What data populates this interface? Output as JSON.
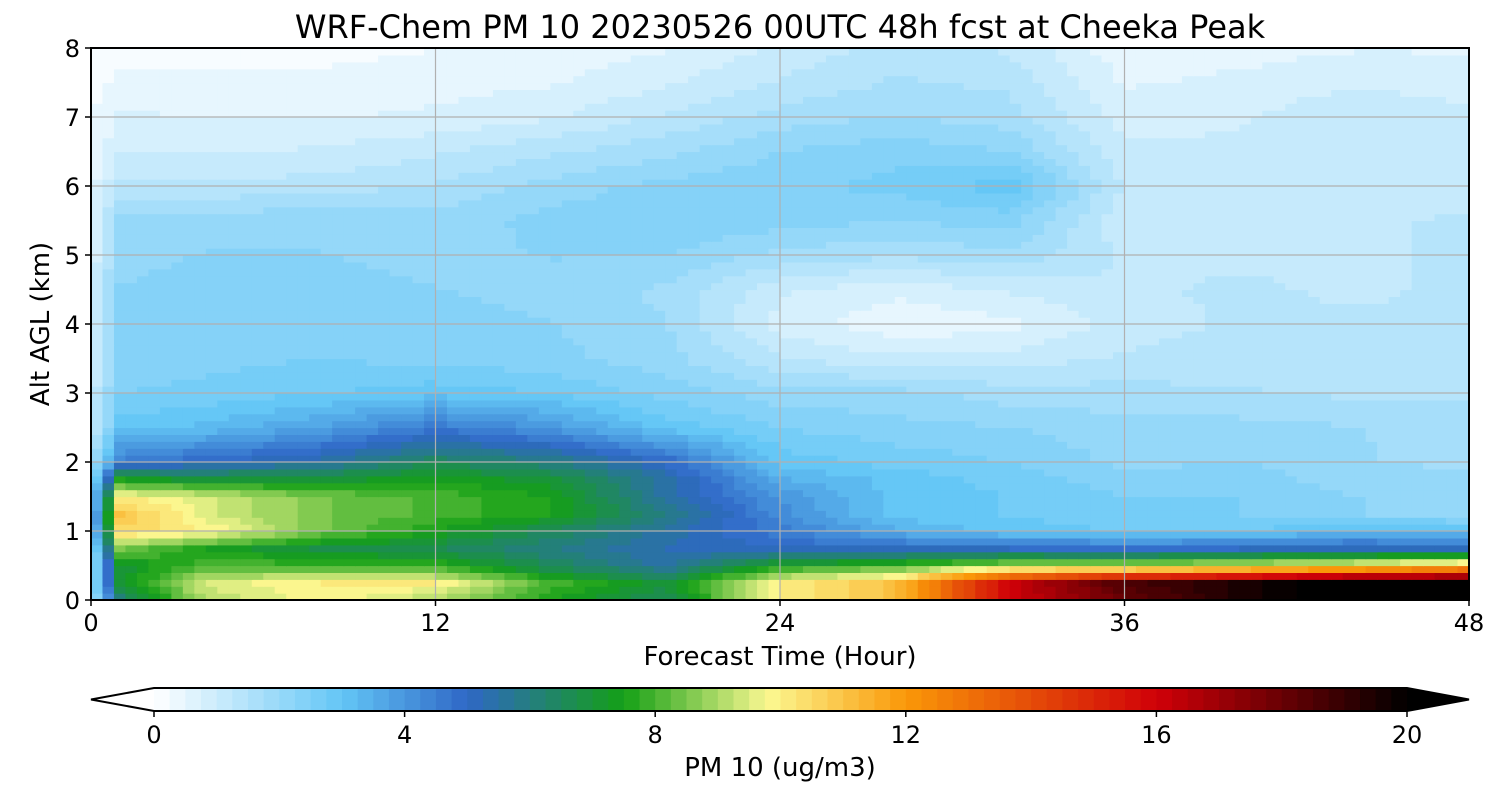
{
  "chart_data": {
    "type": "heatmap",
    "title": "WRF-Chem PM 10  20230526 00UTC 48h fcst at Cheeka Peak",
    "xlabel": "Forecast Time (Hour)",
    "ylabel": "Alt AGL (km)",
    "xlim": [
      0,
      48
    ],
    "ylim": [
      0,
      8
    ],
    "xticks": [
      0,
      12,
      24,
      36,
      48
    ],
    "yticks": [
      0,
      1,
      2,
      3,
      4,
      5,
      6,
      7,
      8
    ],
    "grid": true,
    "x": [
      0,
      1,
      4,
      8,
      12,
      16,
      20,
      24,
      28,
      32,
      36,
      40,
      44,
      48
    ],
    "y": [
      0,
      0.25,
      0.5,
      0.75,
      1,
      1.25,
      1.5,
      1.75,
      2,
      2.5,
      3,
      3.5,
      4,
      4.5,
      5,
      5.5,
      6,
      6.5,
      7,
      7.5,
      8
    ],
    "z": [
      [
        1.5,
        6.0,
        9.0,
        10.0,
        9.0,
        7.5,
        6.5,
        10.0,
        11.0,
        16.0,
        18.0,
        19.5,
        20.5,
        20.5
      ],
      [
        1.5,
        7.0,
        9.5,
        10.0,
        10.0,
        8.0,
        7.0,
        10.0,
        11.0,
        16.0,
        18.5,
        19.5,
        20.5,
        20.5
      ],
      [
        1.5,
        7.0,
        8.0,
        8.0,
        7.8,
        6.5,
        5.5,
        7.5,
        8.0,
        9.0,
        9.0,
        9.5,
        10.0,
        11.0
      ],
      [
        1.5,
        8.5,
        7.5,
        6.8,
        6.6,
        6.0,
        5.3,
        5.0,
        5.0,
        5.0,
        4.8,
        5.0,
        5.2,
        5.0
      ],
      [
        2.0,
        10.5,
        10.0,
        8.5,
        7.5,
        6.5,
        5.5,
        4.5,
        3.5,
        3.0,
        2.8,
        2.8,
        3.2,
        3.2
      ],
      [
        2.0,
        11.0,
        9.5,
        8.5,
        8.0,
        7.5,
        6.0,
        4.2,
        3.0,
        2.8,
        2.5,
        2.5,
        2.2,
        2.0
      ],
      [
        2.0,
        10.0,
        9.5,
        8.5,
        8.0,
        7.5,
        5.5,
        4.0,
        3.0,
        2.8,
        2.5,
        2.5,
        2.2,
        2.0
      ],
      [
        2.0,
        7.5,
        7.0,
        7.0,
        7.5,
        7.0,
        5.5,
        3.5,
        3.0,
        2.7,
        2.3,
        2.4,
        2.0,
        2.0
      ],
      [
        1.5,
        4.5,
        5.0,
        5.5,
        6.5,
        6.0,
        5.0,
        3.0,
        2.7,
        2.5,
        2.1,
        2.2,
        1.9,
        1.8
      ],
      [
        1.0,
        3.0,
        3.2,
        3.8,
        4.6,
        4.0,
        3.0,
        2.5,
        2.3,
        2.2,
        2.0,
        2.0,
        1.9,
        1.7
      ],
      [
        1.0,
        2.5,
        2.6,
        2.8,
        3.0,
        2.8,
        2.4,
        2.0,
        2.0,
        1.7,
        1.7,
        1.6,
        1.5,
        1.5
      ],
      [
        0.8,
        2.3,
        2.4,
        2.5,
        2.4,
        2.3,
        2.0,
        1.3,
        1.0,
        1.1,
        1.3,
        1.4,
        1.4,
        1.4
      ],
      [
        0.8,
        2.2,
        2.3,
        2.4,
        2.3,
        2.2,
        1.9,
        0.8,
        0.4,
        0.5,
        1.1,
        1.3,
        1.3,
        1.3
      ],
      [
        0.8,
        2.2,
        2.3,
        2.3,
        2.2,
        2.1,
        1.8,
        1.0,
        0.7,
        1.0,
        1.2,
        1.3,
        1.2,
        1.3
      ],
      [
        0.6,
        2.1,
        2.2,
        2.2,
        2.1,
        2.2,
        2.2,
        1.8,
        1.6,
        1.8,
        1.2,
        1.2,
        1.2,
        1.3
      ],
      [
        0.6,
        2.0,
        2.1,
        2.1,
        2.0,
        2.3,
        2.5,
        2.3,
        2.2,
        2.3,
        1.0,
        1.1,
        1.2,
        1.3
      ],
      [
        0.5,
        1.3,
        1.3,
        1.4,
        1.6,
        2.0,
        2.3,
        2.4,
        2.6,
        3.0,
        1.2,
        1.0,
        1.1,
        1.1
      ],
      [
        0.4,
        0.9,
        0.9,
        1.0,
        1.2,
        1.5,
        1.8,
        2.2,
        2.4,
        2.2,
        1.0,
        1.0,
        1.0,
        1.0
      ],
      [
        0.3,
        0.7,
        0.6,
        0.6,
        0.7,
        0.9,
        1.3,
        1.7,
        1.9,
        1.7,
        0.8,
        0.9,
        1.2,
        1.0
      ],
      [
        0.2,
        0.4,
        0.4,
        0.4,
        0.5,
        0.6,
        0.9,
        1.3,
        1.6,
        1.5,
        0.6,
        0.7,
        0.9,
        0.8
      ],
      [
        0.1,
        0.2,
        0.2,
        0.2,
        0.3,
        0.4,
        0.6,
        1.0,
        1.4,
        1.2,
        0.4,
        0.5,
        0.6,
        0.6
      ]
    ],
    "colorbar": {
      "label": "PM 10  (ug/m3)",
      "min": 0,
      "max": 20,
      "ticks": [
        0,
        4,
        8,
        12,
        16,
        20
      ],
      "extend": "both",
      "colors": [
        "#ffffff",
        "#63c6f6",
        "#2f67c6",
        "#14a016",
        "#fbf891",
        "#fa9808",
        "#d00008",
        "#000000"
      ],
      "color_stops": [
        0,
        3,
        5,
        7.5,
        9.8,
        12,
        16,
        20
      ]
    }
  }
}
